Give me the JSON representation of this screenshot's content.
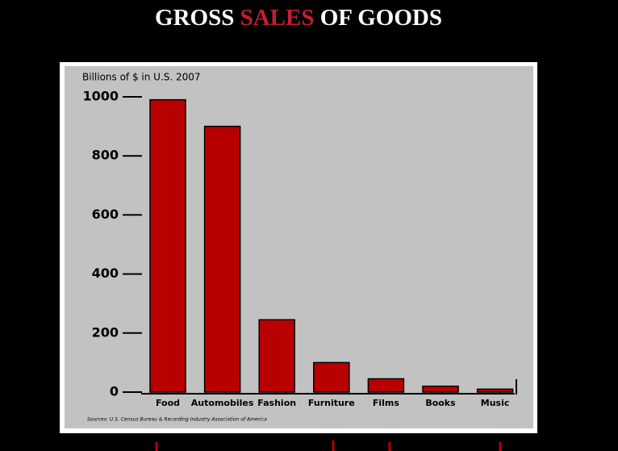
{
  "chart_data": {
    "type": "bar",
    "title": "GROSS SALES OF GOODS",
    "title_accent_word": 1,
    "title_accent_color": "#c41e2e",
    "y_label": "Billions of $ in U.S. 2007",
    "source": "Sources: U.S. Census Bureau & Recording Industry Association of America",
    "categories": [
      "Food",
      "Automobiles",
      "Fashion",
      "Furniture",
      "Films",
      "Books",
      "Music"
    ],
    "values": [
      990,
      900,
      245,
      100,
      45,
      20,
      10
    ],
    "color": "#b80000",
    "ylim": [
      0,
      1000
    ],
    "yticks": [
      0,
      200,
      400,
      600,
      800,
      1000
    ],
    "grid": false
  }
}
